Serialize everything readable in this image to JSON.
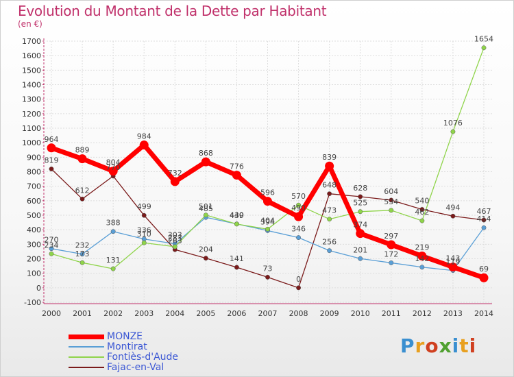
{
  "header": {
    "title": "Evolution du Montant de la Dette par Habitant",
    "unit": "(en €)"
  },
  "logo": {
    "text": "Proxiti",
    "colors": [
      "#3a8fd0",
      "#e8a020",
      "#d04020",
      "#50a030",
      "#3a8fd0",
      "#e8a020",
      "#d04020"
    ]
  },
  "chart_data": {
    "type": "line",
    "title": "Evolution du Montant de la Dette par Habitant",
    "ylabel": "(en €)",
    "x": [
      "2000",
      "2001",
      "2002",
      "2003",
      "2004",
      "2005",
      "2006",
      "2007",
      "2008",
      "2009",
      "2010",
      "2011",
      "2012",
      "2013",
      "2014"
    ],
    "ylim": [
      -100,
      1700
    ],
    "yticks": [
      "-100",
      "0",
      "100",
      "200",
      "300",
      "400",
      "500",
      "600",
      "700",
      "800",
      "900",
      "1000",
      "1100",
      "1200",
      "1300",
      "1400",
      "1500",
      "1600",
      "1700"
    ],
    "grid": true,
    "legend_position": "bottom-left",
    "series": [
      {
        "name": "MONZE",
        "color": "#ff0000",
        "values": [
          964,
          889,
          804,
          984,
          732,
          868,
          776,
          596,
          490,
          839,
          374,
          297,
          219,
          143,
          69
        ],
        "labels": [
          "964",
          "889",
          "804",
          "984",
          "732",
          "868",
          "776",
          "596",
          "490",
          "839",
          "374",
          "297",
          "219",
          "143",
          "69"
        ]
      },
      {
        "name": "Montirat",
        "color": "#5a9fd6",
        "values": [
          270,
          232,
          388,
          336,
          303,
          485,
          440,
          394,
          346,
          256,
          201,
          172,
          142,
          119,
          414
        ],
        "labels": [
          "270",
          "232",
          "388",
          "336",
          "303",
          "485",
          "440",
          "394",
          "346",
          "256",
          "201",
          "172",
          "142",
          "119",
          "414"
        ]
      },
      {
        "name": "Fontiès-d'Aude",
        "color": "#8fd44a",
        "values": [
          234,
          173,
          131,
          310,
          283,
          501,
          439,
          404,
          570,
          473,
          525,
          534,
          462,
          1076,
          1654
        ],
        "labels": [
          "234",
          "173",
          "131",
          "310",
          "283",
          "501",
          "439",
          "404",
          "570",
          "473",
          "525",
          "534",
          "462",
          "1076",
          "1654"
        ]
      },
      {
        "name": "Fajac-en-Val",
        "color": "#7a1a1a",
        "values": [
          819,
          612,
          770,
          499,
          263,
          204,
          141,
          73,
          0,
          648,
          628,
          604,
          540,
          494,
          467
        ],
        "labels": [
          "819",
          "612",
          "770",
          "499",
          "263",
          "204",
          "141",
          "73",
          "0",
          "648",
          "628",
          "604",
          "540",
          "494",
          "467"
        ]
      }
    ]
  }
}
